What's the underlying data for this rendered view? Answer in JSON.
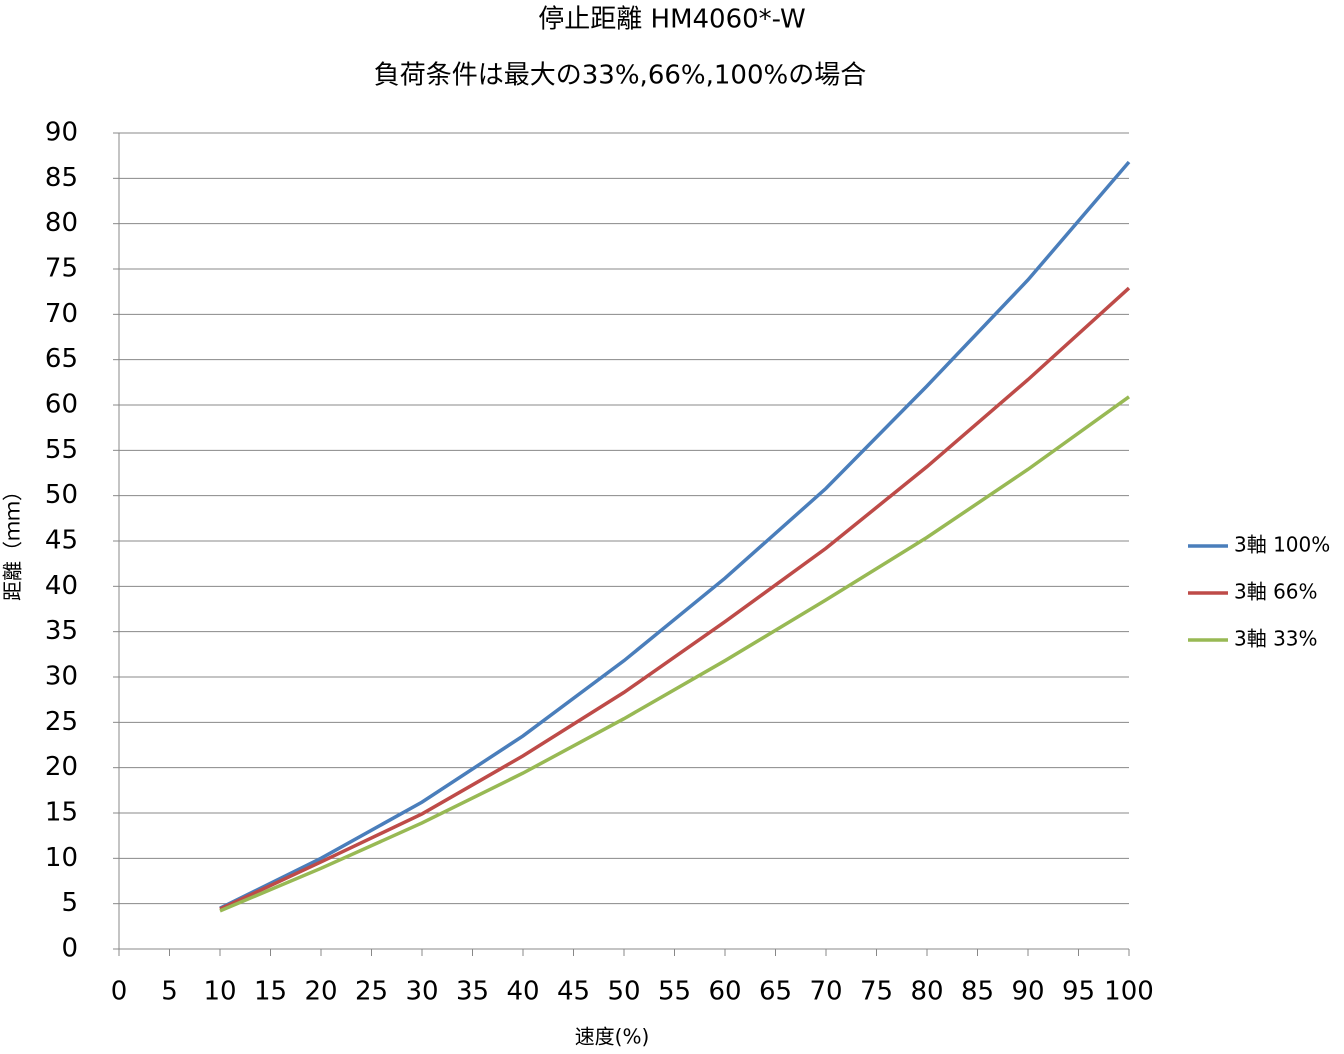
{
  "chart_data": {
    "type": "line",
    "title": "停止距離 HM4060*-W",
    "subtitle": "負荷条件は最大の33%,66%,100%の場合",
    "x_label": "速度(%)",
    "y_label": "距離（ｍｍ）",
    "x": [
      10,
      20,
      30,
      40,
      50,
      60,
      70,
      80,
      90,
      100
    ],
    "series": [
      {
        "name": "3軸 100%",
        "color": "#4a7ebb",
        "values": [
          4.5,
          10.0,
          16.2,
          23.5,
          31.8,
          40.9,
          50.8,
          62.1,
          73.8,
          86.8
        ]
      },
      {
        "name": "3軸 66%",
        "color": "#be4b48",
        "values": [
          4.4,
          9.6,
          14.9,
          21.3,
          28.3,
          36.1,
          44.2,
          53.2,
          62.8,
          72.9
        ]
      },
      {
        "name": "3軸 33%",
        "color": "#98b954",
        "values": [
          4.2,
          8.9,
          13.9,
          19.4,
          25.4,
          31.8,
          38.5,
          45.4,
          52.9,
          60.9
        ]
      }
    ],
    "xlim": [
      0,
      100
    ],
    "xticks": [
      0,
      5,
      10,
      15,
      20,
      25,
      30,
      35,
      40,
      45,
      50,
      55,
      60,
      65,
      70,
      75,
      80,
      85,
      90,
      95,
      100
    ],
    "ylim": [
      0,
      90
    ],
    "yticks": [
      0,
      5,
      10,
      15,
      20,
      25,
      30,
      35,
      40,
      45,
      50,
      55,
      60,
      65,
      70,
      75,
      80,
      85,
      90
    ],
    "grid": true,
    "legend": "right"
  }
}
